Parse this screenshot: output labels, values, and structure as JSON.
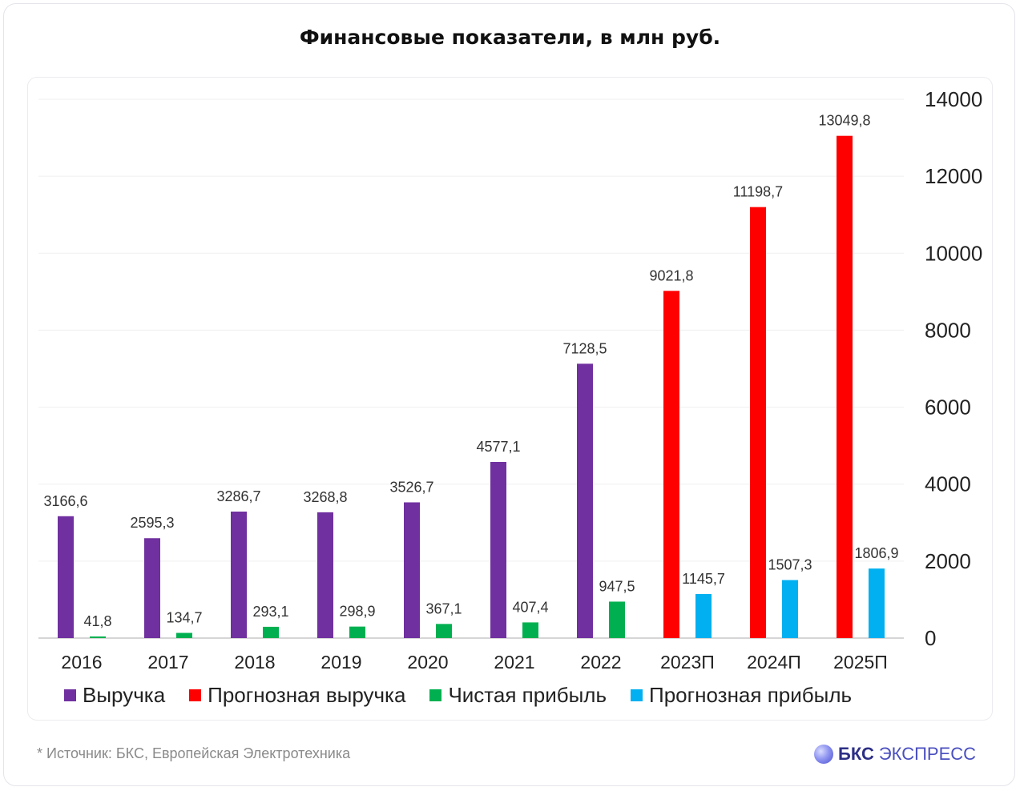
{
  "chart_data": {
    "type": "bar",
    "title": "Финансовые показатели, в млн руб.",
    "categories": [
      "2016",
      "2017",
      "2018",
      "2019",
      "2020",
      "2021",
      "2022",
      "2023П",
      "2024П",
      "2025П"
    ],
    "series": [
      {
        "name": "Выручка",
        "color": "#7030a0",
        "values": [
          3166.6,
          2595.3,
          3286.7,
          3268.8,
          3526.7,
          4577.1,
          7128.5,
          null,
          null,
          null
        ],
        "labels": [
          "3166,6",
          "2595,3",
          "3286,7",
          "3268,8",
          "3526,7",
          "4577,1",
          "7128,5",
          null,
          null,
          null
        ]
      },
      {
        "name": "Прогнозная выручка",
        "color": "#ff0000",
        "values": [
          null,
          null,
          null,
          null,
          null,
          null,
          null,
          9021.8,
          11198.7,
          13049.8
        ],
        "labels": [
          null,
          null,
          null,
          null,
          null,
          null,
          null,
          "9021,8",
          "11198,7",
          "13049,8"
        ]
      },
      {
        "name": "Чистая прибыль",
        "color": "#00b050",
        "values": [
          41.8,
          134.7,
          293.1,
          298.9,
          367.1,
          407.4,
          947.5,
          null,
          null,
          null
        ],
        "labels": [
          "41,8",
          "134,7",
          "293,1",
          "298,9",
          "367,1",
          "407,4",
          "947,5",
          null,
          null,
          null
        ]
      },
      {
        "name": "Прогнозная прибыль",
        "color": "#00b0f0",
        "values": [
          null,
          null,
          null,
          null,
          null,
          null,
          null,
          1145.7,
          1507.3,
          1806.9
        ],
        "labels": [
          null,
          null,
          null,
          null,
          null,
          null,
          null,
          "1145,7",
          "1507,3",
          "1806,9"
        ]
      }
    ],
    "ylim": [
      0,
      14000
    ],
    "yticks": [
      0,
      2000,
      4000,
      6000,
      8000,
      10000,
      12000,
      14000
    ],
    "y_axis_position": "right",
    "grid": true,
    "legend_position": "bottom"
  },
  "footer": {
    "source_note": "*  Источник: БКС, Европейская Электротехника",
    "logo_strong": "БКС",
    "logo_light": "ЭКСПРЕСС"
  }
}
